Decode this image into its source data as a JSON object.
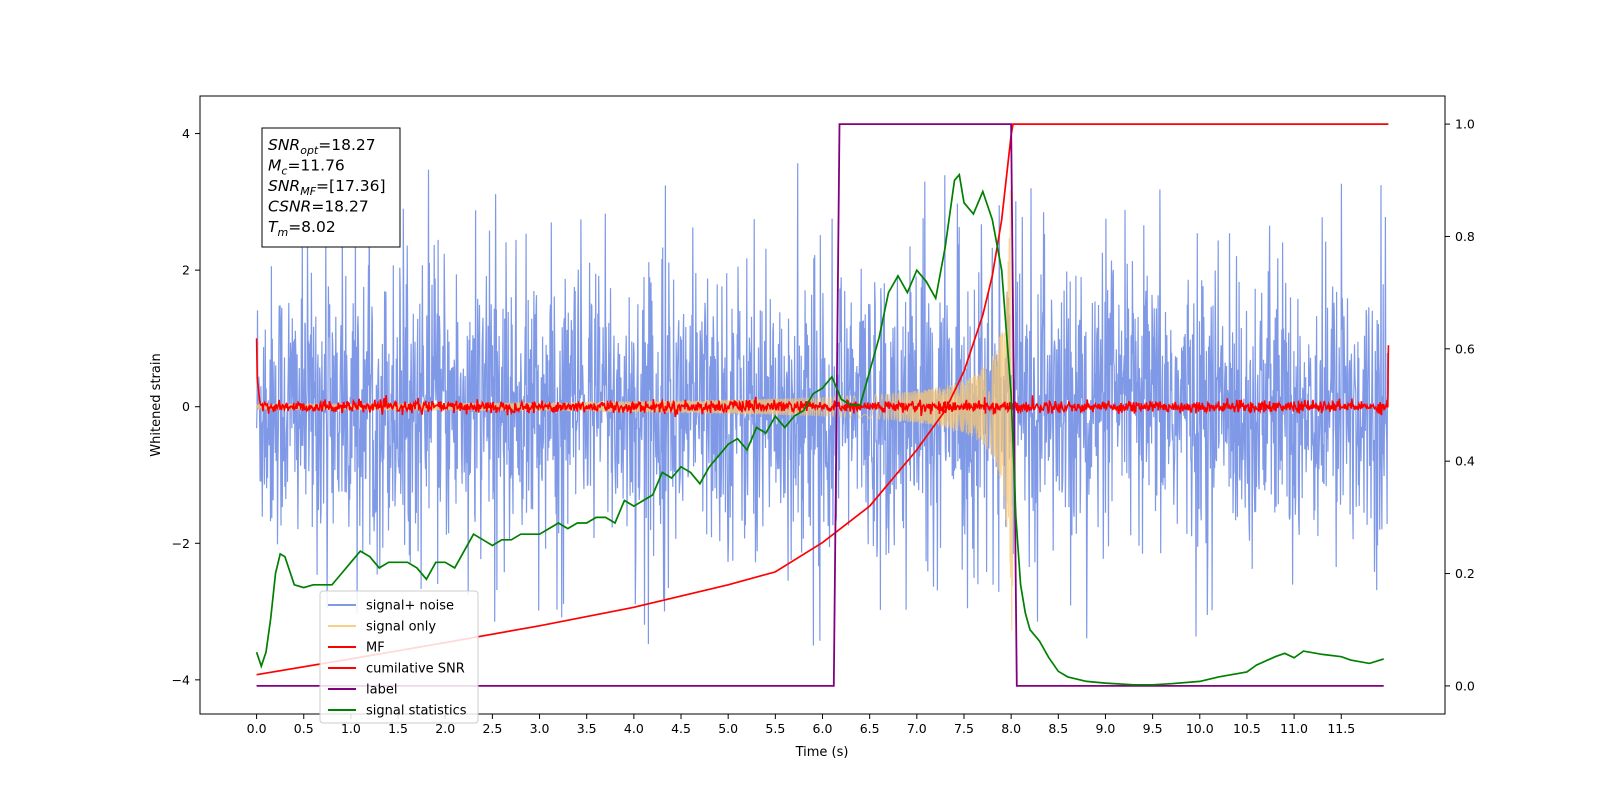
{
  "chart_data": {
    "type": "line",
    "xlabel": "Time (s)",
    "ylabel_left": "Whitened strain",
    "ylabel_right": "",
    "xlim": [
      -0.6,
      12.6
    ],
    "ylim_left": [
      -4.5,
      4.55
    ],
    "ylim_right": [
      -0.05,
      1.05
    ],
    "x_ticks": [
      0.0,
      0.5,
      1.0,
      1.5,
      2.0,
      2.5,
      3.0,
      3.5,
      4.0,
      4.5,
      5.0,
      5.5,
      6.0,
      6.5,
      7.0,
      7.5,
      8.0,
      8.5,
      9.0,
      9.5,
      10.0,
      10.5,
      11.0,
      11.5
    ],
    "x_tick_labels": [
      "0.0",
      "0.5",
      "1.0",
      "1.5",
      "2.0",
      "2.5",
      "3.0",
      "3.5",
      "4.0",
      "4.5",
      "5.0",
      "5.5",
      "6.0",
      "6.5",
      "7.0",
      "7.5",
      "8.0",
      "8.5",
      "9.0",
      "9.5",
      "10.0",
      "10.5",
      "11.0",
      "11.5"
    ],
    "y_ticks_left": [
      -4,
      -2,
      0,
      2,
      4
    ],
    "y_tick_labels_left": [
      "−4",
      "−2",
      "0",
      "2",
      "4"
    ],
    "y_ticks_right": [
      0.0,
      0.2,
      0.4,
      0.6,
      0.8,
      1.0
    ],
    "y_tick_labels_right": [
      "0.0",
      "0.2",
      "0.4",
      "0.6",
      "0.8",
      "1.0"
    ],
    "grid": false,
    "legend_position": "lower-left",
    "annotation_box": {
      "position": "top-left",
      "lines": [
        {
          "name": "SNR",
          "sub": "opt",
          "value": "=18.27"
        },
        {
          "name": "M",
          "sub": "c",
          "value": "=11.76"
        },
        {
          "name": "SNR",
          "sub": "MF",
          "value": "=[17.36]"
        },
        {
          "name": "CSNR",
          "sub": "",
          "value": "=18.27"
        },
        {
          "name": "T",
          "sub": "m",
          "value": "=8.02"
        }
      ]
    },
    "series": [
      {
        "name": "signal+ noise",
        "axis": "left",
        "color": "#7893e6",
        "kind": "noise",
        "description_values": {
          "x_range": [
            0.0,
            12.0
          ],
          "typical_amplitude": 1.3,
          "max": 3.72,
          "min": -3.92
        }
      },
      {
        "name": "signal only",
        "axis": "left",
        "color": "#f7c776",
        "kind": "chirp",
        "description_values": {
          "x_range": [
            0.0,
            8.02
          ],
          "envelope_start": 0.05,
          "envelope_peak": 3.3,
          "merger_time": 8.02
        }
      },
      {
        "name": "MF",
        "axis": "left",
        "color": "#ff0000",
        "kind": "mf",
        "description_values": {
          "x_range": [
            0.0,
            12.0
          ],
          "baseline": 0.0,
          "jitter": 0.08,
          "edge_value": 1.0
        }
      },
      {
        "name": "cumilative SNR",
        "axis": "right",
        "color": "#ff0000",
        "x": [
          0.0,
          1.0,
          2.0,
          3.0,
          4.0,
          5.0,
          5.5,
          6.0,
          6.5,
          7.0,
          7.3,
          7.5,
          7.7,
          7.8,
          7.9,
          8.0,
          8.02,
          8.05,
          12.0
        ],
        "y": [
          0.02,
          0.048,
          0.077,
          0.107,
          0.14,
          0.18,
          0.203,
          0.255,
          0.32,
          0.42,
          0.49,
          0.56,
          0.66,
          0.73,
          0.83,
          0.98,
          1.0,
          1.0,
          1.0
        ]
      },
      {
        "name": "label",
        "axis": "right",
        "color": "#800080",
        "x": [
          0.0,
          6.12,
          6.18,
          8.0,
          8.06,
          11.95
        ],
        "y": [
          0.0,
          0.0,
          1.0,
          1.0,
          0.0,
          0.0
        ]
      },
      {
        "name": "signal statistics",
        "axis": "right",
        "color": "#008000",
        "x": [
          0.0,
          0.05,
          0.1,
          0.15,
          0.2,
          0.25,
          0.3,
          0.4,
          0.5,
          0.6,
          0.8,
          0.9,
          1.0,
          1.1,
          1.2,
          1.3,
          1.4,
          1.5,
          1.6,
          1.7,
          1.8,
          1.9,
          2.0,
          2.1,
          2.2,
          2.3,
          2.4,
          2.5,
          2.6,
          2.7,
          2.8,
          2.9,
          3.0,
          3.1,
          3.2,
          3.3,
          3.4,
          3.5,
          3.6,
          3.7,
          3.8,
          3.9,
          4.0,
          4.1,
          4.2,
          4.3,
          4.4,
          4.5,
          4.6,
          4.7,
          4.8,
          4.9,
          5.0,
          5.1,
          5.2,
          5.3,
          5.4,
          5.5,
          5.6,
          5.7,
          5.8,
          5.9,
          6.0,
          6.1,
          6.2,
          6.3,
          6.4,
          6.5,
          6.6,
          6.7,
          6.8,
          6.9,
          7.0,
          7.1,
          7.2,
          7.3,
          7.4,
          7.45,
          7.5,
          7.6,
          7.7,
          7.8,
          7.9,
          8.0,
          8.05,
          8.1,
          8.15,
          8.2,
          8.3,
          8.4,
          8.5,
          8.6,
          8.8,
          9.0,
          9.3,
          9.5,
          9.7,
          10.0,
          10.2,
          10.5,
          10.6,
          10.8,
          10.9,
          11.0,
          11.1,
          11.3,
          11.5,
          11.6,
          11.8,
          11.95
        ],
        "y": [
          0.06,
          0.035,
          0.06,
          0.12,
          0.2,
          0.235,
          0.23,
          0.18,
          0.175,
          0.18,
          0.18,
          0.2,
          0.22,
          0.24,
          0.23,
          0.21,
          0.22,
          0.22,
          0.22,
          0.21,
          0.19,
          0.22,
          0.22,
          0.21,
          0.24,
          0.27,
          0.26,
          0.25,
          0.26,
          0.26,
          0.27,
          0.27,
          0.27,
          0.28,
          0.29,
          0.28,
          0.29,
          0.29,
          0.3,
          0.3,
          0.29,
          0.33,
          0.32,
          0.33,
          0.34,
          0.38,
          0.37,
          0.39,
          0.38,
          0.36,
          0.39,
          0.41,
          0.43,
          0.44,
          0.42,
          0.46,
          0.45,
          0.48,
          0.46,
          0.48,
          0.49,
          0.52,
          0.53,
          0.55,
          0.51,
          0.5,
          0.5,
          0.56,
          0.62,
          0.7,
          0.73,
          0.7,
          0.74,
          0.72,
          0.69,
          0.78,
          0.9,
          0.91,
          0.86,
          0.84,
          0.88,
          0.83,
          0.74,
          0.52,
          0.3,
          0.18,
          0.13,
          0.1,
          0.08,
          0.05,
          0.026,
          0.016,
          0.008,
          0.005,
          0.002,
          0.002,
          0.004,
          0.008,
          0.016,
          0.025,
          0.037,
          0.052,
          0.058,
          0.05,
          0.062,
          0.056,
          0.052,
          0.046,
          0.04,
          0.048
        ]
      }
    ]
  }
}
